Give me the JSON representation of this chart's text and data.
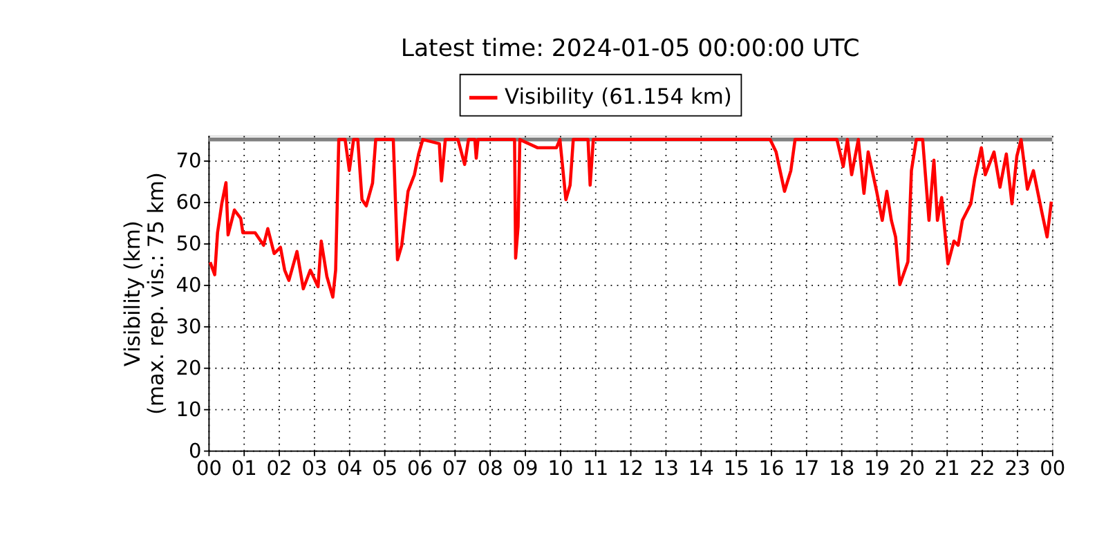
{
  "chart_data": {
    "type": "line",
    "title": "Latest time: 2024-01-05 00:00:00 UTC",
    "ylabel": "Visibility (km)\n(max. rep. vis.: 75 km)",
    "x": [
      0.05,
      0.18,
      0.26,
      0.38,
      0.5,
      0.56,
      0.74,
      0.92,
      0.98,
      1.33,
      1.57,
      1.69,
      1.87,
      2.05,
      2.17,
      2.29,
      2.52,
      2.7,
      2.9,
      3.12,
      3.21,
      3.37,
      3.54,
      3.62,
      3.71,
      3.89,
      4.01,
      4.13,
      4.25,
      4.37,
      4.49,
      4.67,
      4.76,
      5.26,
      5.38,
      5.5,
      5.68,
      5.86,
      5.98,
      6.1,
      6.57,
      6.63,
      6.74,
      7.1,
      7.29,
      7.4,
      7.58,
      7.62,
      7.67,
      8.71,
      8.74,
      8.81,
      8.86,
      9.37,
      9.9,
      10.0,
      10.17,
      10.29,
      10.38,
      10.8,
      10.86,
      10.95,
      15.98,
      16.15,
      16.39,
      16.57,
      16.69,
      17.88,
      18.06,
      18.18,
      18.3,
      18.49,
      18.65,
      18.77,
      19.01,
      19.17,
      19.3,
      19.43,
      19.55,
      19.67,
      19.9,
      20.0,
      20.14,
      20.32,
      20.5,
      20.64,
      20.74,
      20.86,
      21.04,
      21.21,
      21.33,
      21.45,
      21.69,
      21.8,
      21.99,
      22.1,
      22.35,
      22.52,
      22.7,
      22.86,
      23.0,
      23.12,
      23.3,
      23.47,
      23.71,
      23.86,
      23.98
    ],
    "series": [
      {
        "name": "Visibility (61.154 km)",
        "color": "#ff0000",
        "values": [
          45.4,
          42.4,
          52.5,
          59.5,
          64.6,
          52,
          58,
          56,
          52.5,
          52.5,
          49.5,
          53.5,
          47.5,
          49,
          43.5,
          41,
          48,
          39,
          43.5,
          39.5,
          50.5,
          42,
          37,
          43.5,
          75,
          75,
          67.5,
          75,
          75,
          60.5,
          59,
          64.5,
          75,
          75,
          46,
          49.5,
          62.5,
          66.5,
          71.5,
          75,
          74,
          65,
          75,
          75,
          69,
          75,
          75,
          70.5,
          75,
          75,
          46.4,
          54,
          75,
          73,
          73,
          75,
          60.5,
          64,
          75,
          75,
          64,
          75,
          75,
          72,
          62.5,
          67.5,
          75,
          75,
          68.5,
          75,
          66.5,
          75,
          62,
          72,
          62.5,
          55.5,
          62.5,
          55.5,
          51.5,
          40,
          45.5,
          67.5,
          75,
          75,
          55.5,
          70,
          55.5,
          61,
          45,
          50.5,
          49.5,
          55.5,
          59.5,
          65.5,
          73,
          66.5,
          72,
          63.5,
          71.5,
          59.5,
          71,
          75,
          63,
          67.5,
          57.5,
          51.5,
          60
        ]
      }
    ],
    "xlim": [
      0,
      24
    ],
    "xticks": [
      {
        "value": 0,
        "label": "00"
      },
      {
        "value": 1,
        "label": "01"
      },
      {
        "value": 2,
        "label": "02"
      },
      {
        "value": 3,
        "label": "03"
      },
      {
        "value": 4,
        "label": "04"
      },
      {
        "value": 5,
        "label": "05"
      },
      {
        "value": 6,
        "label": "06"
      },
      {
        "value": 7,
        "label": "07"
      },
      {
        "value": 8,
        "label": "08"
      },
      {
        "value": 9,
        "label": "09"
      },
      {
        "value": 10,
        "label": "10"
      },
      {
        "value": 11,
        "label": "11"
      },
      {
        "value": 12,
        "label": "12"
      },
      {
        "value": 13,
        "label": "13"
      },
      {
        "value": 14,
        "label": "14"
      },
      {
        "value": 15,
        "label": "15"
      },
      {
        "value": 16,
        "label": "16"
      },
      {
        "value": 17,
        "label": "17"
      },
      {
        "value": 18,
        "label": "18"
      },
      {
        "value": 19,
        "label": "19"
      },
      {
        "value": 20,
        "label": "20"
      },
      {
        "value": 21,
        "label": "21"
      },
      {
        "value": 22,
        "label": "22"
      },
      {
        "value": 23,
        "label": "23"
      },
      {
        "value": 24,
        "label": "00"
      }
    ],
    "ylim": [
      0,
      76
    ],
    "yticks": [
      0,
      10,
      20,
      30,
      40,
      50,
      60,
      70
    ],
    "ref_lines": [
      {
        "axis": "y",
        "value": 75,
        "label": null,
        "color": "#808080"
      }
    ],
    "grid": true,
    "legend": "top",
    "line_style": "solid"
  }
}
